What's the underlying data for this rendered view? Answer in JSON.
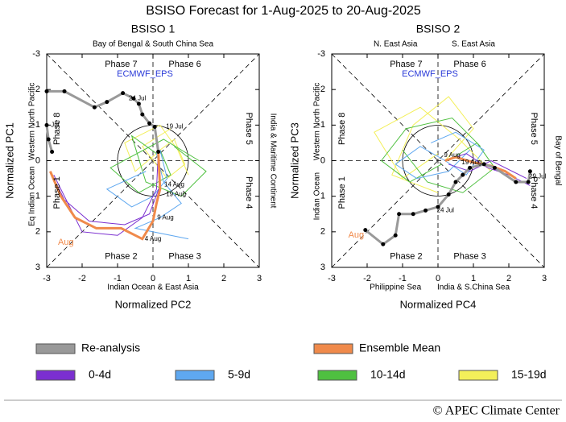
{
  "title": "BSISO Forecast for 1-Aug-2025 to 20-Aug-2025",
  "footer": "© APEC Climate Center",
  "chart_data": [
    {
      "type": "line",
      "title": "BSISO 1",
      "xlabel": "Normalized PC2",
      "ylabel": "Normalized PC1",
      "xlim": [
        -3,
        3
      ],
      "ylim": [
        -3,
        3
      ],
      "y_inverted": true,
      "xticks": [
        -3,
        -2,
        -1,
        0,
        1,
        2,
        3
      ],
      "yticks": [
        -3,
        -2,
        -1,
        0,
        1,
        2,
        3
      ],
      "model": "ECMWF_EPS",
      "phases": [
        "Phase 1",
        "Phase 2",
        "Phase 3",
        "Phase 4",
        "Phase 5",
        "Phase 6",
        "Phase 7",
        "Phase 8"
      ],
      "regions": {
        "top": [
          "Bay of Bengal & South China Sea"
        ],
        "bottom": [
          "Indian Ocean & East Asia"
        ],
        "left": [
          "Eq Indian Ocean",
          "Western North Pacific"
        ],
        "right": [
          "India & Maritime Continent"
        ]
      },
      "date_labels": [
        {
          "text": "24 Jul",
          "x": -0.75,
          "y": -1.75
        },
        {
          "text": "19 Jul",
          "x": 0.3,
          "y": -0.95
        },
        {
          "text": "Jul",
          "x": -2.95,
          "y": -1.0
        },
        {
          "text": "14 Aug",
          "x": 0.25,
          "y": 0.68
        },
        {
          "text": "19 Aug",
          "x": 0.3,
          "y": 0.95
        },
        {
          "text": "9 Aug",
          "x": 0.05,
          "y": 1.6
        },
        {
          "text": "4 Aug",
          "x": -0.3,
          "y": 2.2
        },
        {
          "text": "Aug",
          "x": -2.75,
          "y": 2.3,
          "color": "#f08a4b"
        }
      ],
      "series": [
        {
          "name": "15-19d",
          "color": "#f3ef5a",
          "lines": [
            {
              "x": [
                0.2,
                0.6,
                0.9,
                0.4,
                -0.3,
                0.5
              ],
              "values": [
                -0.3,
                -0.6,
                0.1,
                0.5,
                -0.4,
                -0.9
              ]
            },
            {
              "x": [
                0.1,
                -0.5,
                -0.8,
                0.2,
                0.7,
                1.0
              ],
              "values": [
                -0.2,
                0.3,
                -0.5,
                -1.0,
                -0.3,
                0.4
              ]
            }
          ]
        },
        {
          "name": "10-14d",
          "color": "#4fc040",
          "lines": [
            {
              "x": [
                0.2,
                0.5,
                -0.4,
                -1.2,
                0.3,
                1.3
              ],
              "values": [
                -0.3,
                0.4,
                0.9,
                0.2,
                -0.6,
                0.0
              ]
            },
            {
              "x": [
                0.1,
                -0.6,
                -0.2,
                0.8,
                1.5,
                0.6
              ],
              "values": [
                -0.2,
                -0.7,
                0.6,
                1.0,
                0.3,
                -0.4
              ]
            }
          ]
        },
        {
          "name": "5-9d",
          "color": "#5fa8f0",
          "lines": [
            {
              "x": [
                0.2,
                0.4,
                0.0,
                -0.6,
                -1.3,
                -0.2
              ],
              "values": [
                -0.3,
                0.5,
                1.0,
                1.3,
                0.8,
                0.3
              ]
            },
            {
              "x": [
                0.1,
                0.3,
                0.8,
                0.2,
                -0.5,
                1.0
              ],
              "values": [
                -0.2,
                0.6,
                1.2,
                1.6,
                1.9,
                2.2
              ]
            }
          ]
        },
        {
          "name": "0-4d",
          "color": "#7b2fd0",
          "lines": [
            {
              "x": [
                0.15,
                0.1,
                -0.3,
                -1.0,
                -2.0,
                -2.8
              ],
              "values": [
                -0.25,
                0.8,
                1.6,
                2.1,
                2.0,
                0.4
              ]
            },
            {
              "x": [
                0.15,
                0.2,
                -0.1,
                -0.8,
                -1.8,
                -2.5,
                -2.9
              ],
              "values": [
                -0.25,
                0.7,
                1.5,
                1.8,
                1.7,
                1.1,
                0.3
              ]
            }
          ]
        },
        {
          "name": "Ensemble Mean",
          "color": "#f08a4b",
          "lines": [
            {
              "x": [
                0.15,
                0.2,
                0.1,
                0.0,
                -0.3,
                -0.9,
                -1.6,
                -2.2,
                -2.6,
                -2.9
              ],
              "values": [
                -0.25,
                0.8,
                1.2,
                1.7,
                2.2,
                1.9,
                1.9,
                1.6,
                1.0,
                0.3
              ]
            }
          ]
        },
        {
          "name": "Re-analysis",
          "color": "#999999",
          "lines": [
            {
              "x": [
                -3.0,
                -2.5,
                -1.65,
                -1.3,
                -0.85,
                -0.55,
                -0.4,
                -0.3,
                -0.1,
                0.05,
                0.15,
                null,
                -3.0,
                -2.95,
                -2.85
              ],
              "values": [
                -1.95,
                -1.95,
                -1.5,
                -1.65,
                -1.9,
                -1.75,
                -1.6,
                -1.3,
                -1.05,
                -0.95,
                -0.25,
                null,
                -1.0,
                -0.6,
                -0.25
              ]
            }
          ]
        }
      ]
    },
    {
      "type": "line",
      "title": "BSISO 2",
      "xlabel": "Normalized PC4",
      "ylabel": "Normalized PC3",
      "xlim": [
        -3,
        3
      ],
      "ylim": [
        -3,
        3
      ],
      "y_inverted": true,
      "xticks": [
        -3,
        -2,
        -1,
        0,
        1,
        2,
        3
      ],
      "yticks": [
        -3,
        -2,
        -1,
        0,
        1,
        2,
        3
      ],
      "model": "ECMWF_EPS",
      "phases": [
        "Phase 1",
        "Phase 2",
        "Phase 3",
        "Phase 4",
        "Phase 5",
        "Phase 6",
        "Phase 7",
        "Phase 8"
      ],
      "regions": {
        "top": [
          "N. East Asia",
          "S. East Asia"
        ],
        "bottom": [
          "Philippine Sea",
          "India & S.China Sea"
        ],
        "left": [
          "Indian Ocean",
          "Western North Pacific"
        ],
        "right": [
          "Bay of Bengal"
        ]
      },
      "date_labels": [
        {
          "text": "9 Aug",
          "x": 0.1,
          "y": -0.15
        },
        {
          "text": "19 Aug",
          "x": 0.6,
          "y": 0.05
        },
        {
          "text": "24 Jul",
          "x": -0.1,
          "y": 1.4
        },
        {
          "text": "29 Jul",
          "x": 2.5,
          "y": 0.45
        },
        {
          "text": "Aug",
          "x": -2.6,
          "y": 2.1,
          "color": "#f08a4b"
        }
      ],
      "series": [
        {
          "name": "15-19d",
          "color": "#f3ef5a",
          "lines": [
            {
              "x": [
                0.0,
                -1.0,
                -1.8,
                -0.5,
                0.6,
                1.5
              ],
              "values": [
                -0.2,
                0.5,
                -0.8,
                -1.5,
                -0.6,
                0.3
              ]
            },
            {
              "x": [
                0.2,
                1.0,
                0.3,
                -0.7,
                -1.3,
                0.0
              ],
              "values": [
                0.0,
                -0.9,
                -1.8,
                -1.0,
                0.4,
                0.9
              ]
            }
          ]
        },
        {
          "name": "10-14d",
          "color": "#4fc040",
          "lines": [
            {
              "x": [
                0.1,
                -0.8,
                -1.6,
                -0.9,
                0.4,
                1.2
              ],
              "values": [
                0.1,
                0.6,
                0.0,
                -0.9,
                -1.2,
                -0.4
              ]
            },
            {
              "x": [
                0.3,
                1.1,
                1.6,
                0.7,
                -0.3,
                -1.0
              ],
              "values": [
                0.0,
                -0.5,
                0.2,
                0.9,
                0.6,
                -0.3
              ]
            }
          ]
        },
        {
          "name": "5-9d",
          "color": "#5fa8f0",
          "lines": [
            {
              "x": [
                0.2,
                -0.5,
                -1.2,
                -0.6,
                0.3,
                0.9
              ],
              "values": [
                0.0,
                -0.4,
                0.1,
                0.5,
                0.3,
                -0.3
              ]
            },
            {
              "x": [
                0.2,
                0.8,
                1.3,
                0.5,
                -0.2
              ],
              "values": [
                0.0,
                0.4,
                -0.3,
                -0.8,
                -0.5
              ]
            }
          ]
        },
        {
          "name": "0-4d",
          "color": "#7b2fd0",
          "lines": [
            {
              "x": [
                0.2,
                0.8,
                1.4,
                2.0,
                2.6
              ],
              "values": [
                0.0,
                -0.2,
                0.2,
                0.4,
                0.7
              ]
            },
            {
              "x": [
                0.3,
                0.9,
                1.5,
                2.1,
                2.5
              ],
              "values": [
                0.1,
                0.3,
                0.0,
                0.3,
                0.5
              ]
            }
          ]
        },
        {
          "name": "Ensemble Mean",
          "color": "#f08a4b",
          "lines": [
            {
              "x": [
                0.2,
                0.5,
                1.0,
                1.5,
                1.9,
                2.2
              ],
              "values": [
                0.0,
                -0.1,
                0.05,
                0.15,
                0.3,
                0.5
              ]
            }
          ]
        },
        {
          "name": "Re-analysis",
          "color": "#999999",
          "lines": [
            {
              "x": [
                -2.05,
                -1.55,
                -1.2,
                -1.1,
                -0.7,
                -0.35,
                0.0,
                0.3,
                0.5,
                0.7,
                0.9,
                1.3,
                1.6,
                2.2,
                2.55,
                2.6
              ],
              "values": [
                1.95,
                2.35,
                2.1,
                1.5,
                1.5,
                1.4,
                1.3,
                0.95,
                0.6,
                0.4,
                0.2,
                0.1,
                0.2,
                0.6,
                0.6,
                0.3
              ]
            }
          ]
        }
      ]
    }
  ]
}
